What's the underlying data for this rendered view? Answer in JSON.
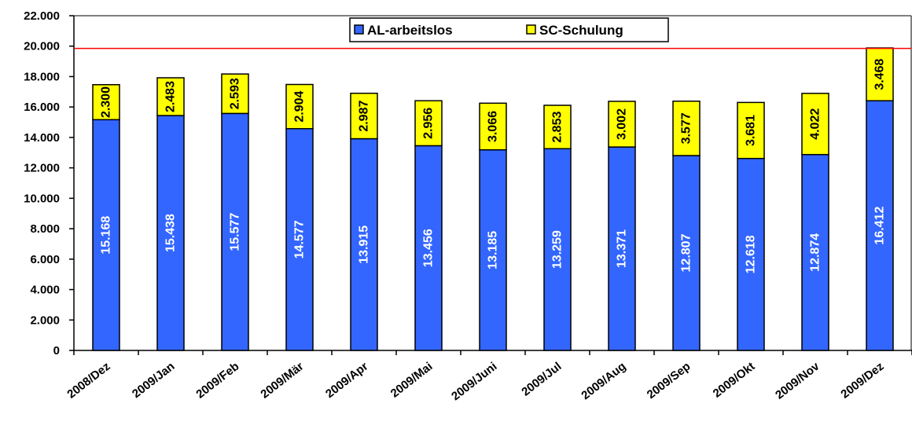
{
  "chart_data": {
    "type": "bar",
    "stacked": true,
    "categories": [
      "2008/Dez",
      "2009/Jan",
      "2009/Feb",
      "2009/Mär",
      "2009/Apr",
      "2009/Mai",
      "2009/Juni",
      "2009/Jul",
      "2009/Aug",
      "2009/Sep",
      "2009/Okt",
      "2009/Nov",
      "2009/Dez"
    ],
    "series": [
      {
        "name": "AL-arbeitslos",
        "color": "#3366ff",
        "label_color": "#ffffff",
        "values": [
          15168,
          15438,
          15577,
          14577,
          13915,
          13456,
          13185,
          13259,
          13371,
          12807,
          12618,
          12874,
          16412
        ],
        "labels": [
          "15.168",
          "15.438",
          "15.577",
          "14.577",
          "13.915",
          "13.456",
          "13.185",
          "13.259",
          "13.371",
          "12.807",
          "12.618",
          "12.874",
          "16.412"
        ]
      },
      {
        "name": "SC-Schulung",
        "color": "#ffff00",
        "label_color": "#000000",
        "values": [
          2300,
          2483,
          2593,
          2904,
          2987,
          2956,
          3066,
          2853,
          3002,
          3577,
          3681,
          4022,
          3468
        ],
        "labels": [
          "2.300",
          "2.483",
          "2.593",
          "2.904",
          "2.987",
          "2.956",
          "3.066",
          "2.853",
          "3.002",
          "3.577",
          "3.681",
          "4.022",
          "3.468"
        ]
      }
    ],
    "ylim": [
      0,
      22000
    ],
    "yticks": [
      0,
      2000,
      4000,
      6000,
      8000,
      10000,
      12000,
      14000,
      16000,
      18000,
      20000,
      22000
    ],
    "ytick_labels": [
      "0",
      "2.000",
      "4.000",
      "6.000",
      "8.000",
      "10.000",
      "12.000",
      "14.000",
      "16.000",
      "18.000",
      "20.000",
      "22.000"
    ],
    "reference_line": {
      "value": 19850,
      "color": "#ff0000"
    },
    "grid": false,
    "legend_position": "top-center",
    "title": "",
    "xlabel": "",
    "ylabel": ""
  }
}
